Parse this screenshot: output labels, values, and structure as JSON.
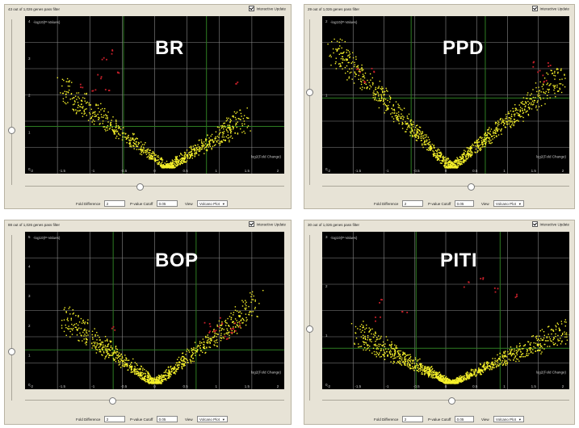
{
  "colors": {
    "panel_bg": "#e7e3d6",
    "plot_bg": "#000000",
    "grid": "#8a8a8a",
    "threshold": "#2e7d22",
    "point": "#f5f12a",
    "significant": "#c8202a",
    "label": "#ffffff"
  },
  "panels": [
    {
      "status": "43 out of 1,026 genes pass filter",
      "interactive_update": "Interactive Update",
      "label": "BR",
      "y_axis": "-log10(P-Values)",
      "x_axis": "log2(Fold Change)",
      "y_ticks": [
        "4",
        "3",
        "2",
        "1",
        "0"
      ],
      "x_ticks": [
        "-2",
        "-1.5",
        "-1",
        "-0.5",
        "0",
        "0.5",
        "1",
        "1.5",
        "2"
      ],
      "fold_difference_label": "Fold Difference",
      "fold_difference_value": "2",
      "pvalue_label": "P-value Cutoff",
      "pvalue_value": "0.05",
      "view_label": "View",
      "view_value": "Volcano Plot"
    },
    {
      "status": "29 out of 1,026 genes pass filter",
      "interactive_update": "Interactive Update",
      "label": "PPD",
      "y_axis": "-log10(P-Values)",
      "x_axis": "log2(Fold Change)",
      "y_ticks": [
        "2",
        "1",
        "0"
      ],
      "x_ticks": [
        "-2",
        "-1.5",
        "-1",
        "-0.5",
        "0",
        "0.5",
        "1",
        "1.5",
        "2"
      ],
      "fold_difference_label": "Fold Difference",
      "fold_difference_value": "2",
      "pvalue_label": "P-value Cutoff",
      "pvalue_value": "0.05",
      "view_label": "View",
      "view_value": "Volcano Plot"
    },
    {
      "status": "88 out of 1,026 genes pass filter",
      "interactive_update": "Interactive Update",
      "label": "BOP",
      "y_axis": "-log10(P-Values)",
      "x_axis": "log2(Fold Change)",
      "y_ticks": [
        "5",
        "4",
        "3",
        "2",
        "1",
        "0"
      ],
      "x_ticks": [
        "-2",
        "-1.5",
        "-1",
        "-0.5",
        "0",
        "0.5",
        "1",
        "1.5",
        "2"
      ],
      "fold_difference_label": "Fold Difference",
      "fold_difference_value": "2",
      "pvalue_label": "P-value Cutoff",
      "pvalue_value": "0.05",
      "view_label": "View",
      "view_value": "Volcano Plot"
    },
    {
      "status": "30 out of 1,026 genes pass filter",
      "interactive_update": "Interactive Update",
      "label": "PITI",
      "y_axis": "-log10(P-Values)",
      "x_axis": "log2(Fold Change)",
      "y_ticks": [
        "3",
        "2",
        "1",
        "0"
      ],
      "x_ticks": [
        "-2",
        "-1.5",
        "-1",
        "-0.5",
        "0",
        "0.5",
        "1",
        "1.5",
        "2"
      ],
      "fold_difference_label": "Fold Difference",
      "fold_difference_value": "2",
      "pvalue_label": "P-value Cutoff",
      "pvalue_value": "0.05",
      "view_label": "View",
      "view_value": "Volcano Plot"
    }
  ]
}
